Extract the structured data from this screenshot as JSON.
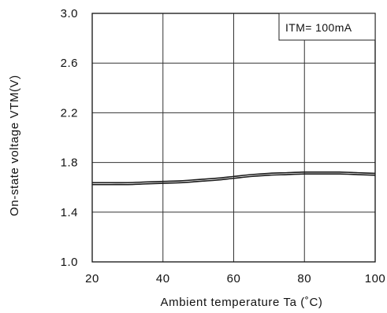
{
  "chart_data": {
    "type": "line",
    "xlabel": "Ambient temperature Ta (˚C)",
    "ylabel": "On-state voltage VTM(V)",
    "xlim": [
      20,
      100
    ],
    "ylim": [
      1.0,
      3.0
    ],
    "x_ticks": [
      "20",
      "40",
      "60",
      "80",
      "100"
    ],
    "y_ticks": [
      "1.0",
      "1.4",
      "1.8",
      "2.2",
      "2.6",
      "3.0"
    ],
    "grid": true,
    "legend": "ITM= 100mA",
    "series": [
      {
        "name": "",
        "x": [
          20,
          25,
          30,
          35,
          40,
          45,
          50,
          55,
          60,
          65,
          70,
          75,
          80,
          85,
          90,
          95,
          100
        ],
        "values": [
          1.63,
          1.63,
          1.63,
          1.635,
          1.64,
          1.645,
          1.655,
          1.665,
          1.68,
          1.695,
          1.705,
          1.71,
          1.715,
          1.715,
          1.715,
          1.71,
          1.705
        ]
      }
    ]
  }
}
